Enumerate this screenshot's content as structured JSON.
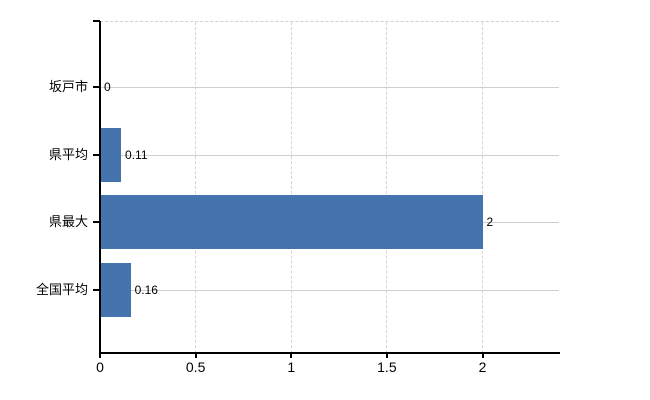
{
  "chart_data": {
    "type": "bar",
    "orientation": "horizontal",
    "title": "",
    "xlabel": "",
    "ylabel": "",
    "categories": [
      "坂戸市",
      "県平均",
      "県最大",
      "全国平均"
    ],
    "values": [
      0,
      0.11,
      2,
      0.16
    ],
    "value_labels": [
      "0",
      "0.11",
      "2",
      "0.16"
    ],
    "x_ticks": [
      0,
      0.5,
      1,
      1.5,
      2
    ],
    "x_tick_labels": [
      "0",
      "0.5",
      "1",
      "1.5",
      "2"
    ],
    "xlim": [
      0,
      2.4
    ],
    "grid": true,
    "legend": false,
    "colors": {
      "bar": "#4473ad",
      "h_gridline": "#c9d3c7",
      "v_gridline": "#d7d3d7",
      "plot_top_border": "#d2ced2",
      "axis": "#000000",
      "text": "#000000",
      "background": "#ffffff"
    }
  }
}
